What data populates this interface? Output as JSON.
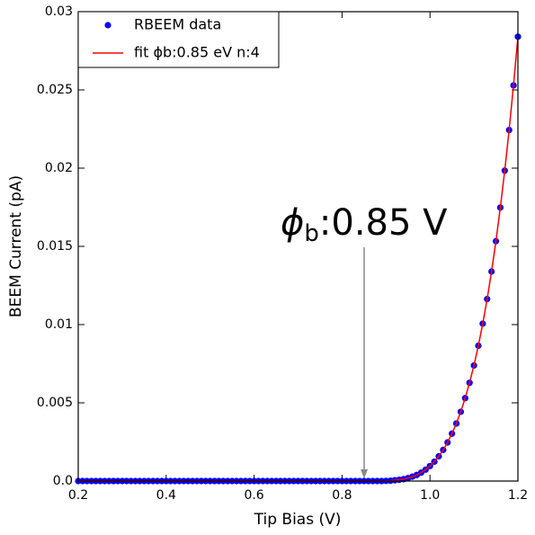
{
  "chart_data": {
    "type": "scatter",
    "xlabel": "Tip Bias (V)",
    "ylabel": "BEEM Current (pA)",
    "annotation": {
      "symbol": "ϕ",
      "subscript": "b",
      "text": ":0.85 V"
    },
    "x": [
      0.2,
      0.21,
      0.22,
      0.23,
      0.24,
      0.25,
      0.26,
      0.27,
      0.28,
      0.29,
      0.3,
      0.31,
      0.32,
      0.33,
      0.34,
      0.35,
      0.36,
      0.37,
      0.38,
      0.39,
      0.4,
      0.41,
      0.42,
      0.43,
      0.44,
      0.45,
      0.46,
      0.47,
      0.48,
      0.49,
      0.5,
      0.51,
      0.52,
      0.53,
      0.54,
      0.55,
      0.56,
      0.57,
      0.58,
      0.59,
      0.6,
      0.61,
      0.62,
      0.63,
      0.64,
      0.65,
      0.66,
      0.67,
      0.68,
      0.69,
      0.7,
      0.71,
      0.72,
      0.73,
      0.74,
      0.75,
      0.76,
      0.77,
      0.78,
      0.79,
      0.8,
      0.81,
      0.82,
      0.83,
      0.84,
      0.85,
      0.86,
      0.87,
      0.88,
      0.89,
      0.9,
      0.91,
      0.92,
      0.93,
      0.94,
      0.95,
      0.96,
      0.97,
      0.98,
      0.99,
      1.0,
      1.01,
      1.02,
      1.03,
      1.04,
      1.05,
      1.06,
      1.07,
      1.08,
      1.09,
      1.1,
      1.11,
      1.12,
      1.13,
      1.14,
      1.15,
      1.16,
      1.17,
      1.18,
      1.19,
      1.2
    ],
    "series": [
      {
        "name": "RBEEM data",
        "color": "#0000ff",
        "style": "markers",
        "values": [
          0,
          0,
          0,
          0,
          0,
          0,
          0,
          0,
          0,
          0,
          0,
          0,
          0,
          0,
          0,
          0,
          0,
          0,
          0,
          0,
          0,
          0,
          0,
          0,
          0,
          0,
          0,
          0,
          0,
          0,
          0,
          0,
          0,
          0,
          0,
          0,
          0,
          0,
          0,
          0,
          0,
          0,
          0,
          0,
          0,
          0,
          0,
          0,
          0,
          0,
          0,
          0,
          0,
          0,
          0,
          0,
          0,
          0,
          0,
          0,
          0,
          0,
          0,
          0,
          0,
          0,
          0,
          0,
          0,
          0,
          1e-05,
          2e-05,
          5e-05,
          8e-05,
          0.00012,
          0.00019,
          0.00028,
          0.00039,
          0.00054,
          0.00073,
          0.00096,
          0.00124,
          0.00158,
          0.00199,
          0.00247,
          0.00303,
          0.00368,
          0.00443,
          0.0053,
          0.00628,
          0.00739,
          0.00865,
          0.01006,
          0.01163,
          0.01339,
          0.01533,
          0.01748,
          0.01984,
          0.02244,
          0.02529,
          0.0284
        ]
      },
      {
        "name": "fit ϕb:0.85 eV n:4",
        "color": "#ff0000",
        "style": "line",
        "values": [
          0,
          0,
          0,
          0,
          0,
          0,
          0,
          0,
          0,
          0,
          0,
          0,
          0,
          0,
          0,
          0,
          0,
          0,
          0,
          0,
          0,
          0,
          0,
          0,
          0,
          0,
          0,
          0,
          0,
          0,
          0,
          0,
          0,
          0,
          0,
          0,
          0,
          0,
          0,
          0,
          0,
          0,
          0,
          0,
          0,
          0,
          0,
          0,
          0,
          0,
          0,
          0,
          0,
          0,
          0,
          0,
          0,
          0,
          0,
          0,
          0,
          0,
          0,
          0,
          0,
          0,
          0,
          0,
          0,
          0,
          1e-05,
          2e-05,
          5e-05,
          8e-05,
          0.00012,
          0.00019,
          0.00028,
          0.00039,
          0.00054,
          0.00073,
          0.00096,
          0.00124,
          0.00158,
          0.00199,
          0.00247,
          0.00303,
          0.00368,
          0.00443,
          0.0053,
          0.00628,
          0.00739,
          0.00865,
          0.01006,
          0.01163,
          0.01339,
          0.01533,
          0.01748,
          0.01984,
          0.02244,
          0.02529,
          0.0284
        ]
      }
    ],
    "xlim": [
      0.2,
      1.2
    ],
    "xticks": [
      0.2,
      0.4,
      0.6,
      0.8,
      {
        "value": 1,
        "label": "1.0"
      },
      1.2
    ],
    "ylim": [
      0,
      0.03
    ],
    "yticks": [
      {
        "value": 0,
        "label": "0.0"
      },
      0.005,
      0.01,
      0.015,
      0.02,
      0.025,
      0.03
    ],
    "legend": "upper left",
    "grid": false
  }
}
